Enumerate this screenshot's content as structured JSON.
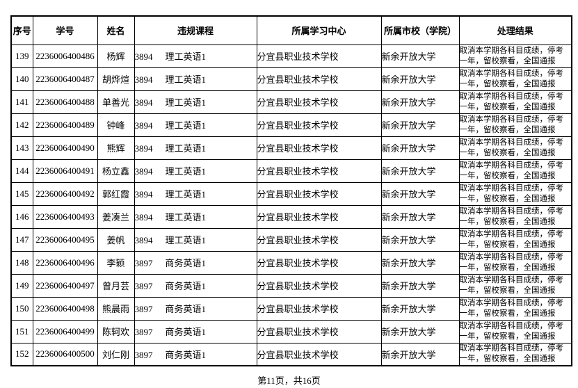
{
  "table": {
    "headers": [
      "序号",
      "学号",
      "姓名",
      "违规课程",
      "所属学习中心",
      "所属市校（学院）",
      "处理结果"
    ],
    "rows": [
      {
        "no": "139",
        "student_id": "2236006400486",
        "name": "杨辉",
        "course_code": "3894",
        "course_name": "理工英语1",
        "center": "分宜县职业技术学校",
        "school": "新余开放大学",
        "result": "取消本学期各科目成绩，停考一年，留校察看，全国通报"
      },
      {
        "no": "140",
        "student_id": "2236006400487",
        "name": "胡烨煊",
        "course_code": "3894",
        "course_name": "理工英语1",
        "center": "分宜县职业技术学校",
        "school": "新余开放大学",
        "result": "取消本学期各科目成绩，停考一年，留校察看，全国通报"
      },
      {
        "no": "141",
        "student_id": "2236006400488",
        "name": "单善光",
        "course_code": "3894",
        "course_name": "理工英语1",
        "center": "分宜县职业技术学校",
        "school": "新余开放大学",
        "result": "取消本学期各科目成绩，停考一年，留校察看，全国通报"
      },
      {
        "no": "142",
        "student_id": "2236006400489",
        "name": "钟峰",
        "course_code": "3894",
        "course_name": "理工英语1",
        "center": "分宜县职业技术学校",
        "school": "新余开放大学",
        "result": "取消本学期各科目成绩，停考一年，留校察看，全国通报"
      },
      {
        "no": "143",
        "student_id": "2236006400490",
        "name": "熊辉",
        "course_code": "3894",
        "course_name": "理工英语1",
        "center": "分宜县职业技术学校",
        "school": "新余开放大学",
        "result": "取消本学期各科目成绩，停考一年，留校察看，全国通报"
      },
      {
        "no": "144",
        "student_id": "2236006400491",
        "name": "杨立鑫",
        "course_code": "3894",
        "course_name": "理工英语1",
        "center": "分宜县职业技术学校",
        "school": "新余开放大学",
        "result": "取消本学期各科目成绩，停考一年，留校察看，全国通报"
      },
      {
        "no": "145",
        "student_id": "2236006400492",
        "name": "郭红霞",
        "course_code": "3894",
        "course_name": "理工英语1",
        "center": "分宜县职业技术学校",
        "school": "新余开放大学",
        "result": "取消本学期各科目成绩，停考一年，留校察看，全国通报"
      },
      {
        "no": "146",
        "student_id": "2236006400493",
        "name": "姜凑兰",
        "course_code": "3894",
        "course_name": "理工英语1",
        "center": "分宜县职业技术学校",
        "school": "新余开放大学",
        "result": "取消本学期各科目成绩，停考一年，留校察看，全国通报"
      },
      {
        "no": "147",
        "student_id": "2236006400495",
        "name": "姜帆",
        "course_code": "3894",
        "course_name": "理工英语1",
        "center": "分宜县职业技术学校",
        "school": "新余开放大学",
        "result": "取消本学期各科目成绩，停考一年，留校察看，全国通报"
      },
      {
        "no": "148",
        "student_id": "2236006400496",
        "name": "李颖",
        "course_code": "3897",
        "course_name": "商务英语1",
        "center": "分宜县职业技术学校",
        "school": "新余开放大学",
        "result": "取消本学期各科目成绩，停考一年，留校察看，全国通报"
      },
      {
        "no": "149",
        "student_id": "2236006400497",
        "name": "曾月芸",
        "course_code": "3897",
        "course_name": "商务英语1",
        "center": "分宜县职业技术学校",
        "school": "新余开放大学",
        "result": "取消本学期各科目成绩，停考一年，留校察看，全国通报"
      },
      {
        "no": "150",
        "student_id": "2236006400498",
        "name": "熊晨雨",
        "course_code": "3897",
        "course_name": "商务英语1",
        "center": "分宜县职业技术学校",
        "school": "新余开放大学",
        "result": "取消本学期各科目成绩，停考一年，留校察看，全国通报"
      },
      {
        "no": "151",
        "student_id": "2236006400499",
        "name": "陈轲欢",
        "course_code": "3897",
        "course_name": "商务英语1",
        "center": "分宜县职业技术学校",
        "school": "新余开放大学",
        "result": "取消本学期各科目成绩，停考一年，留校察看，全国通报"
      },
      {
        "no": "152",
        "student_id": "2236006400500",
        "name": "刘仁刚",
        "course_code": "3897",
        "course_name": "商务英语1",
        "center": "分宜县职业技术学校",
        "school": "新余开放大学",
        "result": "取消本学期各科目成绩，停考一年，留校察看，全国通报"
      }
    ]
  },
  "footer": {
    "page_info": "第11页，共16页"
  }
}
